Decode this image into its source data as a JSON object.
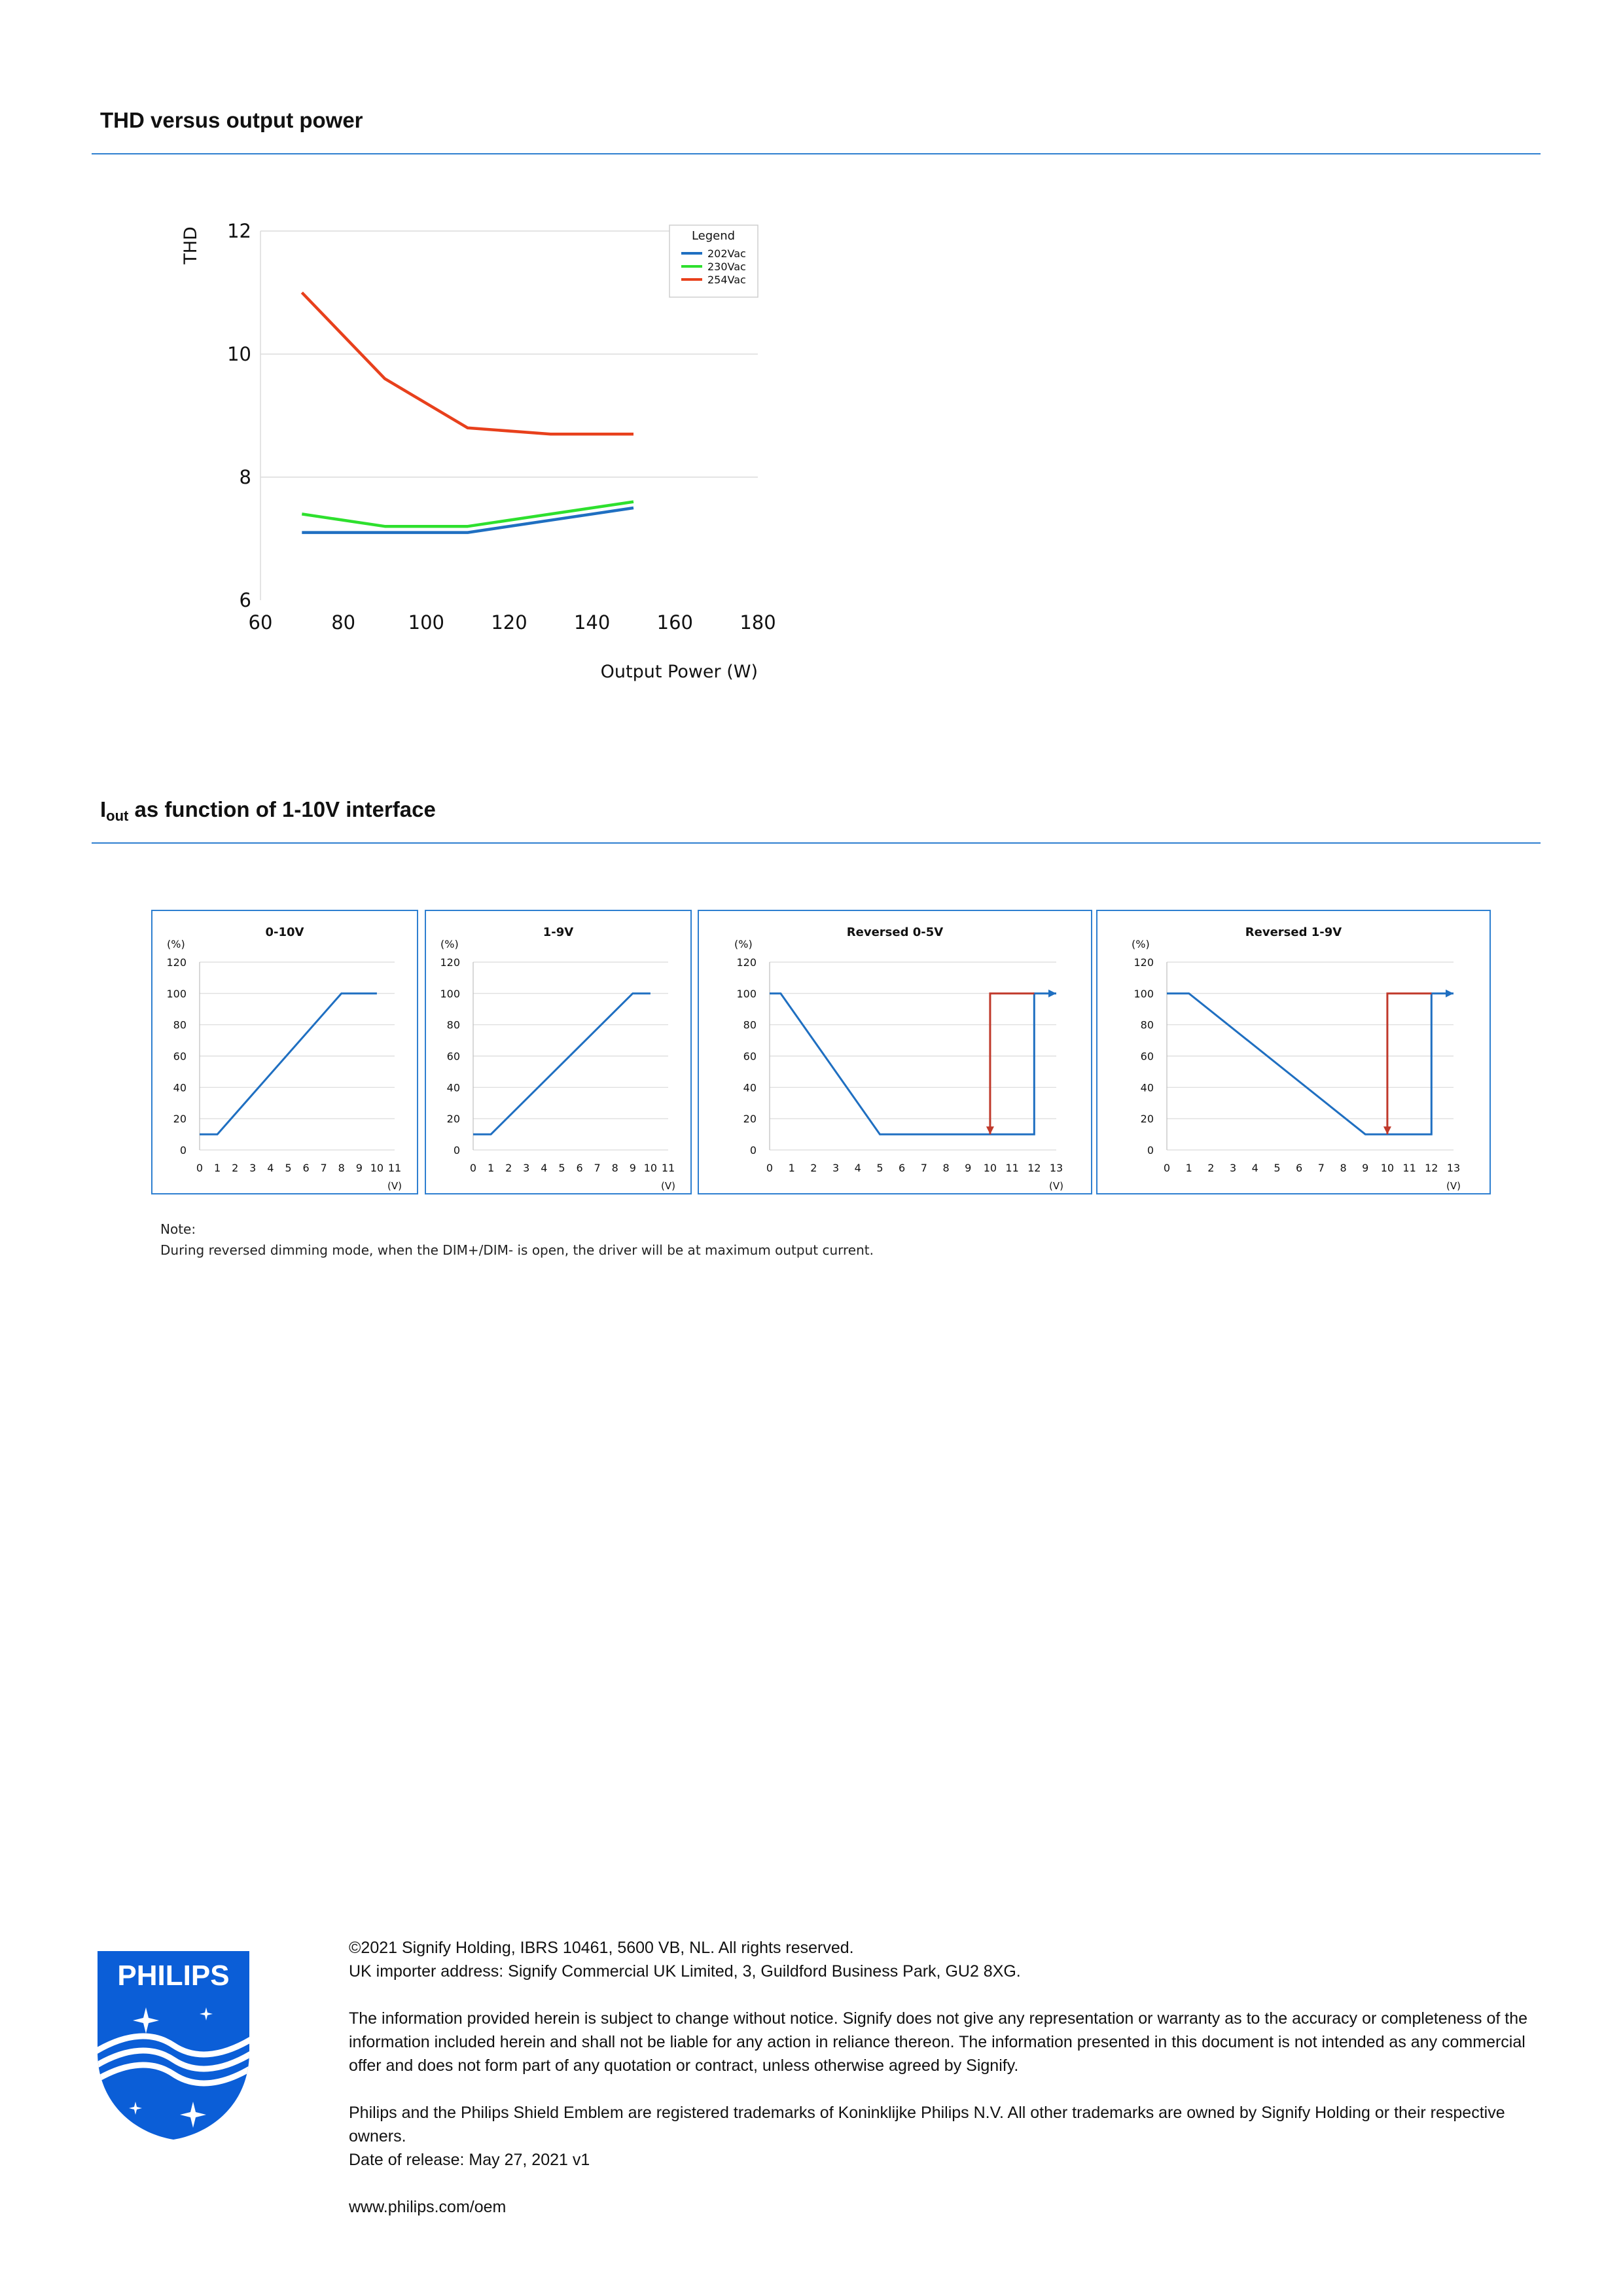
{
  "sections": {
    "thd": {
      "title": "THD versus output power"
    },
    "iout": {
      "title_main": "I",
      "title_sub": "out",
      "title_rest": " as function of 1-10V interface"
    }
  },
  "chart_data": [
    {
      "type": "line",
      "title": "",
      "xlabel": "Output Power (W)",
      "ylabel": "THD",
      "xlim": [
        60,
        180
      ],
      "ylim": [
        6,
        12
      ],
      "xticks": [
        "60",
        "80",
        "100",
        "120",
        "140",
        "160",
        "180"
      ],
      "yticks": [
        "6",
        "8",
        "10",
        "12"
      ],
      "grid": true,
      "legend": {
        "title": "Legend",
        "placement": "top-right"
      },
      "series": [
        {
          "name": "202Vac",
          "color": "#1f6fc1",
          "x": [
            70,
            90,
            110,
            130,
            150
          ],
          "y": [
            7.1,
            7.1,
            7.1,
            7.3,
            7.5
          ]
        },
        {
          "name": "230Vac",
          "color": "#2ee02e",
          "x": [
            70,
            90,
            110,
            130,
            150
          ],
          "y": [
            7.4,
            7.2,
            7.2,
            7.4,
            7.6
          ]
        },
        {
          "name": "254Vac",
          "color": "#e8401c",
          "x": [
            70,
            90,
            110,
            130,
            150
          ],
          "y": [
            11.0,
            9.6,
            8.8,
            8.7,
            8.7
          ]
        }
      ]
    },
    {
      "type": "line",
      "title": "0-10V",
      "xlabel": "(V)",
      "ylabel": "(%)",
      "xlim": [
        0,
        11
      ],
      "ylim": [
        0,
        120
      ],
      "xticks": [
        "0",
        "1",
        "2",
        "3",
        "4",
        "5",
        "6",
        "7",
        "8",
        "9",
        "10",
        "11"
      ],
      "yticks": [
        "0",
        "20",
        "40",
        "60",
        "80",
        "100",
        "120"
      ],
      "series": [
        {
          "color": "#1f6fc1",
          "x": [
            0,
            1,
            8,
            10
          ],
          "y": [
            10,
            10,
            100,
            100
          ]
        }
      ]
    },
    {
      "type": "line",
      "title": "1-9V",
      "xlabel": "(V)",
      "ylabel": "(%)",
      "xlim": [
        0,
        11
      ],
      "ylim": [
        0,
        120
      ],
      "xticks": [
        "0",
        "1",
        "2",
        "3",
        "4",
        "5",
        "6",
        "7",
        "8",
        "9",
        "10",
        "11"
      ],
      "yticks": [
        "0",
        "20",
        "40",
        "60",
        "80",
        "100",
        "120"
      ],
      "series": [
        {
          "color": "#1f6fc1",
          "x": [
            0,
            1,
            9,
            10
          ],
          "y": [
            10,
            10,
            100,
            100
          ]
        }
      ]
    },
    {
      "type": "line",
      "title": "Reversed 0-5V",
      "xlabel": "(V)",
      "ylabel": "(%)",
      "xlim": [
        0,
        13
      ],
      "ylim": [
        0,
        120
      ],
      "xticks": [
        "0",
        "1",
        "2",
        "3",
        "4",
        "5",
        "6",
        "7",
        "8",
        "9",
        "10",
        "11",
        "12",
        "13"
      ],
      "yticks": [
        "0",
        "20",
        "40",
        "60",
        "80",
        "100",
        "120"
      ],
      "series": [
        {
          "color": "#1f6fc1",
          "x": [
            0,
            0.5,
            5,
            12,
            12,
            13
          ],
          "y": [
            100,
            100,
            10,
            10,
            100,
            100
          ]
        },
        {
          "color": "#c0392b",
          "x": [
            12,
            10,
            10
          ],
          "y": [
            100,
            100,
            10
          ]
        }
      ]
    },
    {
      "type": "line",
      "title": "Reversed 1-9V",
      "xlabel": "(V)",
      "ylabel": "(%)",
      "xlim": [
        0,
        13
      ],
      "ylim": [
        0,
        120
      ],
      "xticks": [
        "0",
        "1",
        "2",
        "3",
        "4",
        "5",
        "6",
        "7",
        "8",
        "9",
        "10",
        "11",
        "12",
        "13"
      ],
      "yticks": [
        "0",
        "20",
        "40",
        "60",
        "80",
        "100",
        "120"
      ],
      "series": [
        {
          "color": "#1f6fc1",
          "x": [
            0,
            1,
            9,
            12,
            12,
            13
          ],
          "y": [
            100,
            100,
            10,
            10,
            100,
            100
          ]
        },
        {
          "color": "#c0392b",
          "x": [
            12,
            10,
            10
          ],
          "y": [
            100,
            100,
            10
          ]
        }
      ]
    }
  ],
  "note": {
    "heading": "Note:",
    "text": "During reversed dimming mode, when the DIM+/DIM- is open, the driver will be at maximum output current."
  },
  "logo": {
    "wordmark": "PHILIPS",
    "colors": {
      "blue": "#0b5ed7"
    }
  },
  "footer": {
    "line1": "©2021 Signify Holding, IBRS 10461, 5600 VB, NL. All rights reserved.",
    "line2": "UK importer address: Signify Commercial UK Limited, 3, Guildford Business Park, GU2 8XG.",
    "disclaimer": "The information provided herein is subject to change without notice. Signify does not give any representation or warranty as to the accuracy or completeness of the information included herein and shall not be liable for any action in reliance thereon. The information presented in this document is not intended as any commercial offer and does not form part of any quotation or contract, unless otherwise agreed by Signify.",
    "trademarks": "Philips and the Philips Shield Emblem are registered trademarks of Koninklijke Philips N.V. All other trademarks are owned by Signify Holding or their respective owners.",
    "release": "Date of release: May 27, 2021 v1",
    "url": "www.philips.com/oem"
  }
}
